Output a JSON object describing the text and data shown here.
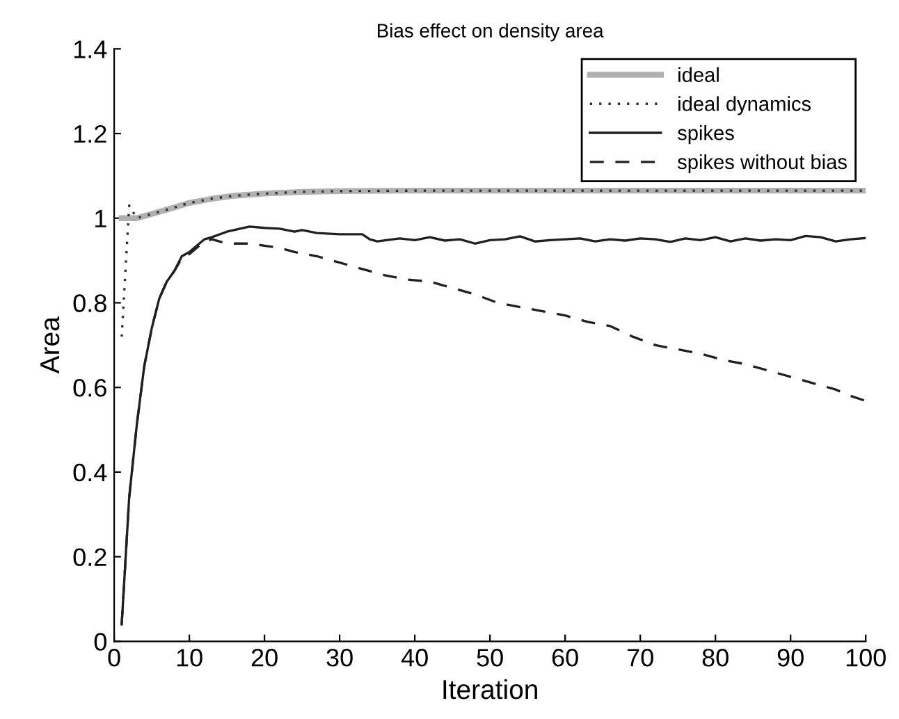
{
  "chart_data": {
    "type": "line",
    "title": "Bias effect on density area",
    "xlabel": "Iteration",
    "ylabel": "Area",
    "xlim": [
      0,
      100
    ],
    "ylim": [
      0,
      1.4
    ],
    "xticks": [
      0,
      10,
      20,
      30,
      40,
      50,
      60,
      70,
      80,
      90,
      100
    ],
    "yticks": [
      0,
      0.2,
      0.4,
      0.6,
      0.8,
      1,
      1.2,
      1.4
    ],
    "grid": false,
    "legend": "top right",
    "series": [
      {
        "name": "ideal",
        "color": "#b0b0b0",
        "line_style": "solid",
        "x": [
          1,
          3,
          5,
          7,
          10,
          13,
          16,
          20,
          25,
          30,
          40,
          50,
          60,
          70,
          80,
          90,
          100
        ],
        "values": [
          1.0,
          1.0,
          1.01,
          1.02,
          1.036,
          1.046,
          1.053,
          1.058,
          1.062,
          1.064,
          1.065,
          1.065,
          1.065,
          1.065,
          1.065,
          1.065,
          1.065
        ]
      },
      {
        "name": "ideal dynamics",
        "color": "#303030",
        "line_style": "dotted",
        "x": [
          1,
          2,
          3,
          5,
          7,
          10,
          13,
          16,
          20,
          25,
          30,
          40,
          50,
          60,
          70,
          80,
          90,
          100
        ],
        "values": [
          0.72,
          1.03,
          1.0,
          1.01,
          1.02,
          1.036,
          1.046,
          1.053,
          1.058,
          1.062,
          1.064,
          1.065,
          1.065,
          1.065,
          1.065,
          1.065,
          1.065,
          1.065
        ]
      },
      {
        "name": "spikes",
        "color": "#202020",
        "line_style": "solid",
        "x": [
          1,
          2,
          3,
          4,
          5,
          6,
          7,
          8,
          9,
          10,
          11,
          12,
          13,
          15,
          18,
          20,
          22,
          24,
          25,
          27,
          30,
          33,
          34,
          35,
          38,
          40,
          42,
          44,
          46,
          48,
          50,
          52,
          54,
          56,
          58,
          60,
          62,
          64,
          66,
          68,
          70,
          72,
          74,
          76,
          78,
          80,
          82,
          84,
          86,
          88,
          90,
          92,
          94,
          96,
          98,
          100
        ],
        "values": [
          0.04,
          0.34,
          0.51,
          0.65,
          0.74,
          0.81,
          0.85,
          0.875,
          0.91,
          0.92,
          0.935,
          0.95,
          0.955,
          0.968,
          0.98,
          0.977,
          0.975,
          0.968,
          0.972,
          0.965,
          0.962,
          0.962,
          0.95,
          0.945,
          0.952,
          0.948,
          0.955,
          0.947,
          0.95,
          0.94,
          0.948,
          0.95,
          0.957,
          0.945,
          0.948,
          0.95,
          0.952,
          0.945,
          0.95,
          0.947,
          0.952,
          0.95,
          0.944,
          0.952,
          0.948,
          0.955,
          0.945,
          0.952,
          0.947,
          0.95,
          0.948,
          0.958,
          0.955,
          0.945,
          0.95,
          0.953
        ]
      },
      {
        "name": "spikes without bias",
        "color": "#202020",
        "line_style": "dashed",
        "x": [
          1,
          2,
          3,
          4,
          5,
          6,
          7,
          8,
          9,
          10,
          11,
          12,
          13,
          15,
          18,
          20,
          22,
          24,
          27,
          30,
          33,
          36,
          39,
          42,
          45,
          48,
          51,
          54,
          57,
          60,
          63,
          66,
          69,
          72,
          75,
          78,
          81,
          84,
          87,
          90,
          93,
          96,
          98,
          100
        ],
        "values": [
          0.04,
          0.34,
          0.51,
          0.65,
          0.74,
          0.81,
          0.85,
          0.875,
          0.905,
          0.915,
          0.93,
          0.945,
          0.95,
          0.94,
          0.94,
          0.935,
          0.93,
          0.92,
          0.91,
          0.895,
          0.88,
          0.865,
          0.855,
          0.85,
          0.835,
          0.82,
          0.8,
          0.79,
          0.78,
          0.77,
          0.755,
          0.745,
          0.72,
          0.7,
          0.69,
          0.68,
          0.665,
          0.655,
          0.64,
          0.625,
          0.61,
          0.595,
          0.58,
          0.568
        ]
      }
    ]
  }
}
